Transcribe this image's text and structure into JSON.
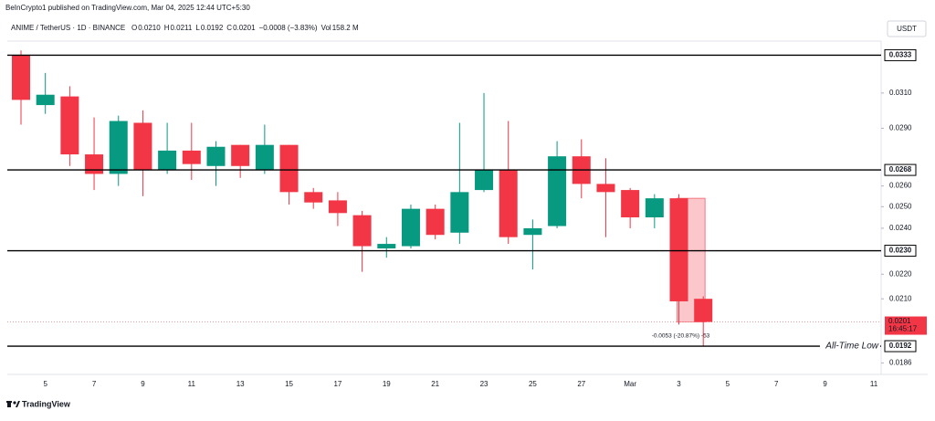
{
  "chart_data": {
    "type": "candlestick",
    "published": "BeInCrypto1 published on TradingView.com, Mar 04, 2025 12:44 UTC+5:30",
    "symbol": "ANIME / TetherUS · 1D · BINANCE",
    "ohlc_legend": [
      {
        "label": "O",
        "value": "0.0210"
      },
      {
        "label": "H",
        "value": "0.0211"
      },
      {
        "label": "L",
        "value": "0.0192"
      },
      {
        "label": "C",
        "value": "0.0201"
      },
      {
        "label": "",
        "value": "−0.0008 (−3.83%)"
      },
      {
        "label": "Vol",
        "value": "158.2 M"
      }
    ],
    "currency": "USDT",
    "categories": [
      null,
      "5",
      null,
      "7",
      null,
      "9",
      null,
      "11",
      null,
      "13",
      null,
      "15",
      null,
      "17",
      null,
      "19",
      null,
      "21",
      null,
      "23",
      null,
      "25",
      null,
      "27",
      null,
      "Mar",
      null,
      "3",
      null,
      "5",
      null,
      "7",
      null,
      "9",
      null,
      "11"
    ],
    "open": [
      0.0333,
      0.0303,
      0.0308,
      0.0276,
      0.0266,
      0.0293,
      0.0268,
      0.0278,
      0.027,
      0.0281,
      0.0268,
      0.0281,
      0.0257,
      0.0253,
      0.0246,
      0.0231,
      0.0232,
      0.0249,
      0.0238,
      0.0258,
      0.0268,
      0.0237,
      0.0241,
      0.0275,
      0.0261,
      0.0258,
      0.0245,
      0.0254,
      0.021,
      null,
      null,
      null,
      null,
      null,
      null,
      null
    ],
    "high": [
      0.0336,
      0.0322,
      0.0314,
      0.0296,
      0.0297,
      0.03,
      0.0293,
      0.0293,
      0.0283,
      0.0281,
      0.0292,
      0.0281,
      0.0259,
      0.0257,
      0.0248,
      0.0236,
      0.0251,
      0.0251,
      0.0293,
      0.031,
      0.0294,
      0.0244,
      0.0283,
      0.0284,
      0.0274,
      0.0259,
      0.0256,
      0.0256,
      0.0211,
      null,
      null,
      null,
      null,
      null,
      null,
      null
    ],
    "low": [
      0.0292,
      0.0298,
      0.027,
      0.0258,
      0.026,
      0.0255,
      0.0266,
      0.0263,
      0.026,
      0.0264,
      0.0266,
      0.0251,
      0.0249,
      0.0241,
      0.0221,
      0.0227,
      0.0231,
      0.0235,
      0.0233,
      0.0257,
      0.0233,
      0.0222,
      0.024,
      0.0254,
      0.0236,
      0.024,
      0.024,
      0.02,
      0.0192,
      null,
      null,
      null,
      null,
      null,
      null,
      null
    ],
    "close": [
      0.0306,
      0.0309,
      0.0276,
      0.0266,
      0.0294,
      0.0268,
      0.0278,
      0.0271,
      0.028,
      0.027,
      0.0281,
      0.0257,
      0.0252,
      0.0247,
      0.0232,
      0.0233,
      0.0249,
      0.0237,
      0.0257,
      0.0268,
      0.0236,
      0.024,
      0.0275,
      0.0261,
      0.0257,
      0.0245,
      0.0254,
      0.0209,
      0.0201,
      null,
      null,
      null,
      null,
      null,
      null,
      null
    ],
    "up_color": "#089981",
    "down_color": "#f23645",
    "log_scale": true,
    "ylim": [
      0.0182,
      0.0342
    ],
    "yticks": [
      {
        "value": 0.031,
        "label": "0.0310"
      },
      {
        "value": 0.029,
        "label": "0.0290"
      },
      {
        "value": 0.026,
        "label": "0.0260"
      },
      {
        "value": 0.025,
        "label": "0.0250"
      },
      {
        "value": 0.024,
        "label": "0.0240"
      },
      {
        "value": 0.022,
        "label": "0.0220"
      },
      {
        "value": 0.021,
        "label": "0.0210"
      },
      {
        "value": 0.0186,
        "label": "0.0186"
      }
    ],
    "levels": [
      {
        "value": 0.0333,
        "label": "0.0333"
      },
      {
        "value": 0.0268,
        "label": "0.0268"
      },
      {
        "value": 0.023,
        "label": "0.0230"
      },
      {
        "value": 0.0192,
        "label": "0.0192",
        "annotation": "All-Time Low"
      }
    ],
    "last_price": {
      "value": 0.0201,
      "label": "0.0201",
      "countdown": "16:45:17"
    },
    "measure": {
      "from": 0.0254,
      "to": 0.0201,
      "label": "-0.0053 (-20.87%) -53"
    },
    "brand": "TradingView"
  }
}
